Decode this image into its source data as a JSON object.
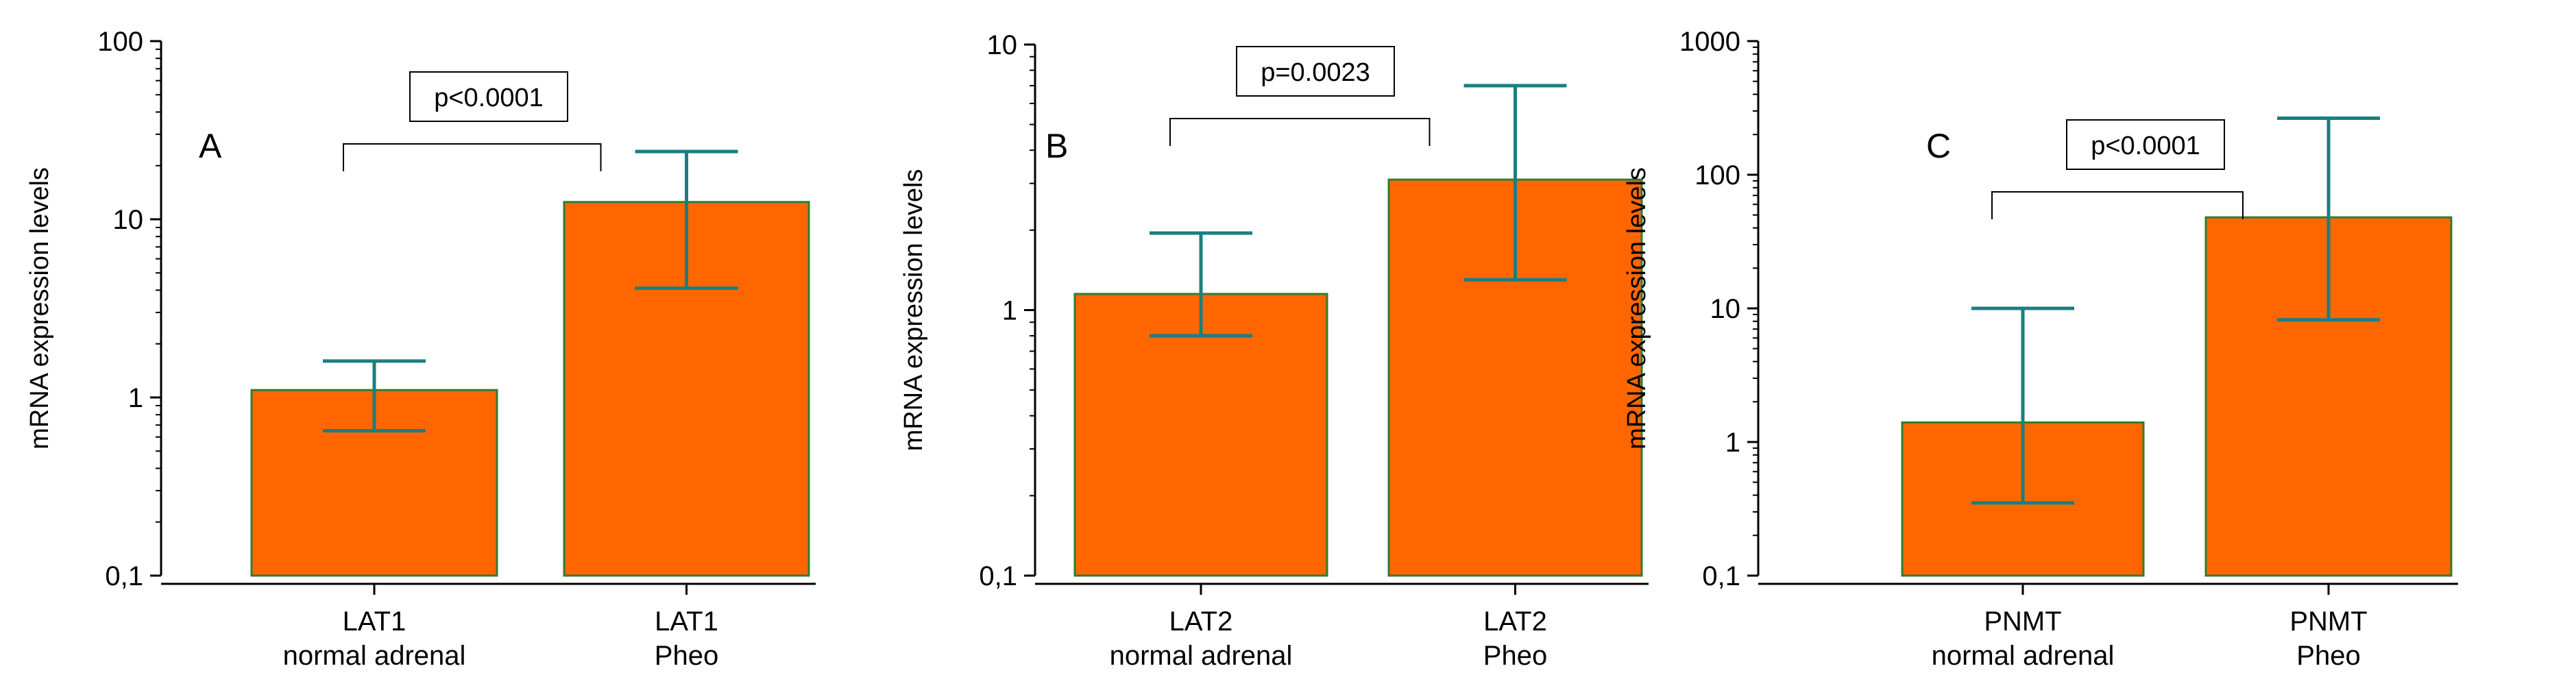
{
  "colors": {
    "bar_fill": "#ff6600",
    "bar_stroke": "#2e7d32",
    "error_bar": "#1b7f7f",
    "axis": "#000000"
  },
  "chart_data": [
    {
      "type": "bar",
      "panel": "A",
      "ylabel": "mRNA expression levels",
      "yscale": "log",
      "ylim": [
        0.1,
        100
      ],
      "ytick_labels": [
        "0,1",
        "1",
        "10",
        "100"
      ],
      "categories": [
        {
          "line1": "LAT1",
          "line2": "normal adrenal"
        },
        {
          "line1": "LAT1",
          "line2": "Pheo"
        }
      ],
      "values": [
        1.1,
        12.5
      ],
      "error_low": [
        0.65,
        4.1
      ],
      "error_high": [
        1.6,
        24
      ],
      "significance": {
        "label": "p<0.0001",
        "between": [
          0,
          1
        ]
      },
      "grid": false
    },
    {
      "type": "bar",
      "panel": "B",
      "ylabel": "mRNA expression levels",
      "yscale": "log",
      "ylim": [
        0.1,
        10
      ],
      "ytick_labels": [
        "0,1",
        "1",
        "10"
      ],
      "categories": [
        {
          "line1": "LAT2",
          "line2": "normal adrenal"
        },
        {
          "line1": "LAT2",
          "line2": "Pheo"
        }
      ],
      "values": [
        1.15,
        3.1
      ],
      "error_low": [
        0.8,
        1.3
      ],
      "error_high": [
        1.95,
        7.0
      ],
      "significance": {
        "label": "p=0.0023",
        "between": [
          0,
          1
        ]
      },
      "grid": false
    },
    {
      "type": "bar",
      "panel": "C",
      "ylabel": "mRNA expression levels",
      "yscale": "log",
      "ylim": [
        0.1,
        1000
      ],
      "ytick_labels": [
        "0,1",
        "1",
        "10",
        "100",
        "1000"
      ],
      "categories": [
        {
          "line1": "PNMT",
          "line2": "normal adrenal"
        },
        {
          "line1": "PNMT",
          "line2": "Pheo"
        }
      ],
      "values": [
        1.4,
        48
      ],
      "error_low": [
        0.35,
        8.2
      ],
      "error_high": [
        10,
        265
      ],
      "significance": {
        "label": "p<0.0001",
        "between": [
          0,
          1
        ]
      },
      "grid": false
    }
  ]
}
